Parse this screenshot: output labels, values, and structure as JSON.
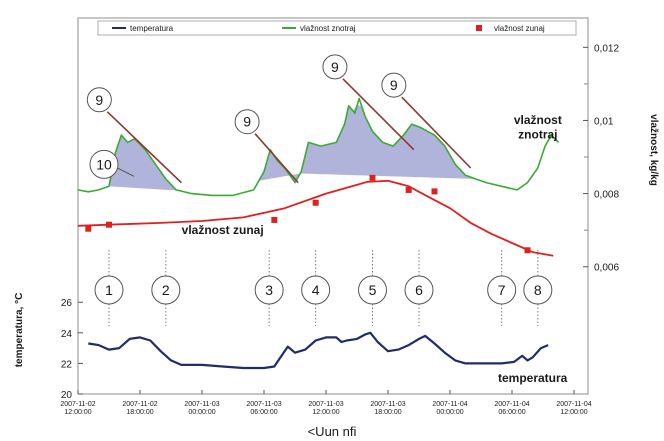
{
  "caption": "<Uun nfi",
  "chart_data": {
    "type": "line",
    "legend": {
      "placement": "top",
      "entries": [
        {
          "label": "temperatura",
          "color": "#1f2d6b",
          "marker": "line"
        },
        {
          "label": "vlažnost znotraj",
          "color": "#3aaa35",
          "marker": "line"
        },
        {
          "label": "vlažnost zunaj",
          "color": "#e02020",
          "marker": "square"
        }
      ]
    },
    "x_axis": {
      "ticks": [
        [
          "2007-11-02",
          "12:00:00"
        ],
        [
          "2007-11-02",
          "18:00:00"
        ],
        [
          "2007-11-03",
          "00:00:00"
        ],
        [
          "2007-11-03",
          "06:00:00"
        ],
        [
          "2007-11-03",
          "12:00:00"
        ],
        [
          "2007-11-03",
          "18:00:00"
        ],
        [
          "2007-11-04",
          "00:00:00"
        ],
        [
          "2007-11-04",
          "06:00:00"
        ],
        [
          "2007-11-04",
          "12:00:00"
        ]
      ],
      "range_hours": [
        0,
        48
      ]
    },
    "y_right": {
      "label": "vlažnost, kg/kg",
      "range": [
        0.0052,
        0.0122
      ],
      "ticks": [
        "0,012",
        "0,01",
        "0,008",
        "0,006"
      ],
      "tick_values": [
        0.012,
        0.01,
        0.008,
        0.006
      ]
    },
    "y_left": {
      "label": "temperatura, °C",
      "range": [
        20,
        28.5
      ],
      "ticks": [
        "26",
        "24",
        "22",
        "20"
      ],
      "tick_values": [
        26,
        24,
        22,
        20
      ]
    },
    "series": [
      {
        "name": "vlažnost znotraj",
        "axis": "right",
        "color": "#3aaa35",
        "points": [
          [
            0,
            0.0081
          ],
          [
            1,
            0.00805
          ],
          [
            2,
            0.0081
          ],
          [
            3,
            0.0082
          ],
          [
            3.6,
            0.0091
          ],
          [
            4.2,
            0.0096
          ],
          [
            4.8,
            0.0094
          ],
          [
            5.5,
            0.0095
          ],
          [
            6.5,
            0.0092
          ],
          [
            7.5,
            0.0088
          ],
          [
            8.5,
            0.0084
          ],
          [
            9.5,
            0.0081
          ],
          [
            11,
            0.008
          ],
          [
            13,
            0.00795
          ],
          [
            15,
            0.00795
          ],
          [
            17,
            0.0081
          ],
          [
            18,
            0.0086
          ],
          [
            18.6,
            0.0092
          ],
          [
            19.3,
            0.0089
          ],
          [
            20,
            0.0087
          ],
          [
            21,
            0.0083
          ],
          [
            21.6,
            0.0086
          ],
          [
            22.3,
            0.0094
          ],
          [
            23.5,
            0.0093
          ],
          [
            25,
            0.0094
          ],
          [
            25.8,
            0.0099
          ],
          [
            26.2,
            0.0104
          ],
          [
            26.8,
            0.0102
          ],
          [
            27.2,
            0.0106
          ],
          [
            27.8,
            0.0101
          ],
          [
            28.5,
            0.0097
          ],
          [
            29.5,
            0.0094
          ],
          [
            30.5,
            0.0093
          ],
          [
            31.5,
            0.0096
          ],
          [
            32.3,
            0.0099
          ],
          [
            33.2,
            0.0098
          ],
          [
            34.5,
            0.0096
          ],
          [
            35.5,
            0.0093
          ],
          [
            36.5,
            0.0088
          ],
          [
            37.5,
            0.0085
          ],
          [
            38.5,
            0.0084
          ],
          [
            39.5,
            0.0083
          ],
          [
            41,
            0.0082
          ],
          [
            42.5,
            0.0081
          ],
          [
            43.5,
            0.0083
          ],
          [
            44.5,
            0.0087
          ],
          [
            45.2,
            0.0093
          ],
          [
            45.8,
            0.0096
          ],
          [
            46.5,
            0.0094
          ]
        ]
      },
      {
        "name": "vlažnost zunaj",
        "axis": "right",
        "color": "#e02020",
        "points": [
          [
            0,
            0.00712
          ],
          [
            4,
            0.00716
          ],
          [
            8,
            0.0072
          ],
          [
            12,
            0.00725
          ],
          [
            16,
            0.00735
          ],
          [
            20,
            0.0076
          ],
          [
            24,
            0.008
          ],
          [
            28,
            0.00832
          ],
          [
            30,
            0.00835
          ],
          [
            32,
            0.0082
          ],
          [
            34,
            0.0079
          ],
          [
            36,
            0.0076
          ],
          [
            38,
            0.0072
          ],
          [
            40,
            0.0069
          ],
          [
            42,
            0.00665
          ],
          [
            44,
            0.0064
          ],
          [
            46,
            0.0063
          ]
        ],
        "markers": [
          [
            1,
            0.00704
          ],
          [
            3,
            0.00715
          ],
          [
            19,
            0.00728
          ],
          [
            23,
            0.00775
          ],
          [
            28.5,
            0.00843
          ],
          [
            32,
            0.0081
          ],
          [
            34.5,
            0.00806
          ],
          [
            43.5,
            0.00645
          ]
        ]
      },
      {
        "name": "temperatura",
        "axis": "left",
        "color": "#1f2d6b",
        "points": [
          [
            1,
            23.3
          ],
          [
            2,
            23.2
          ],
          [
            3,
            22.9
          ],
          [
            4,
            23.0
          ],
          [
            5,
            23.6
          ],
          [
            6,
            23.7
          ],
          [
            7,
            23.5
          ],
          [
            8,
            22.8
          ],
          [
            9,
            22.2
          ],
          [
            10,
            21.9
          ],
          [
            12,
            21.9
          ],
          [
            14,
            21.8
          ],
          [
            16,
            21.7
          ],
          [
            18,
            21.7
          ],
          [
            19,
            21.8
          ],
          [
            19.6,
            22.4
          ],
          [
            20.3,
            23.1
          ],
          [
            21,
            22.7
          ],
          [
            22,
            22.9
          ],
          [
            23,
            23.5
          ],
          [
            24,
            23.7
          ],
          [
            25,
            23.7
          ],
          [
            25.5,
            23.4
          ],
          [
            26,
            23.5
          ],
          [
            27,
            23.6
          ],
          [
            27.8,
            23.9
          ],
          [
            28.3,
            24.0
          ],
          [
            29,
            23.4
          ],
          [
            30,
            22.8
          ],
          [
            31,
            22.9
          ],
          [
            32,
            23.2
          ],
          [
            33,
            23.6
          ],
          [
            33.6,
            23.8
          ],
          [
            34.5,
            23.3
          ],
          [
            35.5,
            22.7
          ],
          [
            36.5,
            22.2
          ],
          [
            37.5,
            22.0
          ],
          [
            39,
            22.0
          ],
          [
            41,
            22.0
          ],
          [
            42.2,
            22.1
          ],
          [
            43,
            22.5
          ],
          [
            43.5,
            22.2
          ],
          [
            44,
            22.4
          ],
          [
            44.8,
            23.0
          ],
          [
            45.5,
            23.2
          ]
        ]
      }
    ],
    "shaded_regions": [
      {
        "series": "vlažnost znotraj",
        "label": "10",
        "x_range": [
          3,
          9.8
        ]
      },
      {
        "series": "vlažnost znotraj",
        "label": "",
        "x_range": [
          17.5,
          21.5
        ]
      },
      {
        "series": "vlažnost znotraj",
        "label": "",
        "x_range": [
          21.5,
          38.5
        ]
      }
    ],
    "annotations": {
      "text": [
        {
          "text": "vlažnost",
          "x": 44.5,
          "y": 0.0099,
          "axis": "right"
        },
        {
          "text": "znotraj",
          "x": 44.5,
          "y": 0.0095,
          "axis": "right"
        },
        {
          "text": "vlažnost zunaj",
          "x": 14,
          "y": 0.0069,
          "axis": "right"
        },
        {
          "text": "temperatura",
          "x": 44,
          "y": 20.8,
          "axis": "left"
        }
      ],
      "event_markers": [
        {
          "label": "1",
          "x": 3
        },
        {
          "label": "2",
          "x": 8.5
        },
        {
          "label": "3",
          "x": 18.5
        },
        {
          "label": "4",
          "x": 23
        },
        {
          "label": "5",
          "x": 28.5
        },
        {
          "label": "6",
          "x": 33
        },
        {
          "label": "7",
          "x": 41
        },
        {
          "label": "8",
          "x": 44.5
        }
      ],
      "slope_markers": [
        {
          "label": "9",
          "x_range": [
            4,
            10
          ],
          "y_range": [
            0.0098,
            0.0083
          ]
        },
        {
          "label": "9",
          "x_range": [
            18.3,
            21.3
          ],
          "y_range": [
            0.0092,
            0.0083
          ]
        },
        {
          "label": "9",
          "x_range": [
            26.8,
            32.5
          ],
          "y_range": [
            0.0107,
            0.0092
          ]
        },
        {
          "label": "9",
          "x_range": [
            32.5,
            38.0
          ],
          "y_range": [
            0.0102,
            0.0087
          ]
        }
      ]
    },
    "grid": false
  }
}
